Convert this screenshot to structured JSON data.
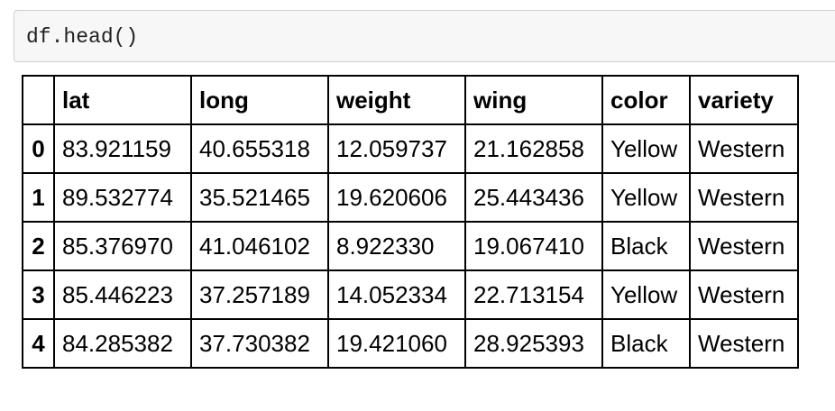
{
  "cell": {
    "code": "df.head()"
  },
  "table": {
    "columns": [
      "",
      "lat",
      "long",
      "weight",
      "wing",
      "color",
      "variety"
    ],
    "rows": [
      {
        "index": "0",
        "lat": "83.921159",
        "long": "40.655318",
        "weight": "12.059737",
        "wing": "21.162858",
        "color": "Yellow",
        "variety": "Western"
      },
      {
        "index": "1",
        "lat": "89.532774",
        "long": "35.521465",
        "weight": "19.620606",
        "wing": "25.443436",
        "color": "Yellow",
        "variety": "Western"
      },
      {
        "index": "2",
        "lat": "85.376970",
        "long": "41.046102",
        "weight": "8.922330",
        "wing": "19.067410",
        "color": "Black",
        "variety": "Western"
      },
      {
        "index": "3",
        "lat": "85.446223",
        "long": "37.257189",
        "weight": "14.052334",
        "wing": "22.713154",
        "color": "Yellow",
        "variety": "Western"
      },
      {
        "index": "4",
        "lat": "84.285382",
        "long": "37.730382",
        "weight": "19.421060",
        "wing": "28.925393",
        "color": "Black",
        "variety": "Western"
      }
    ]
  }
}
